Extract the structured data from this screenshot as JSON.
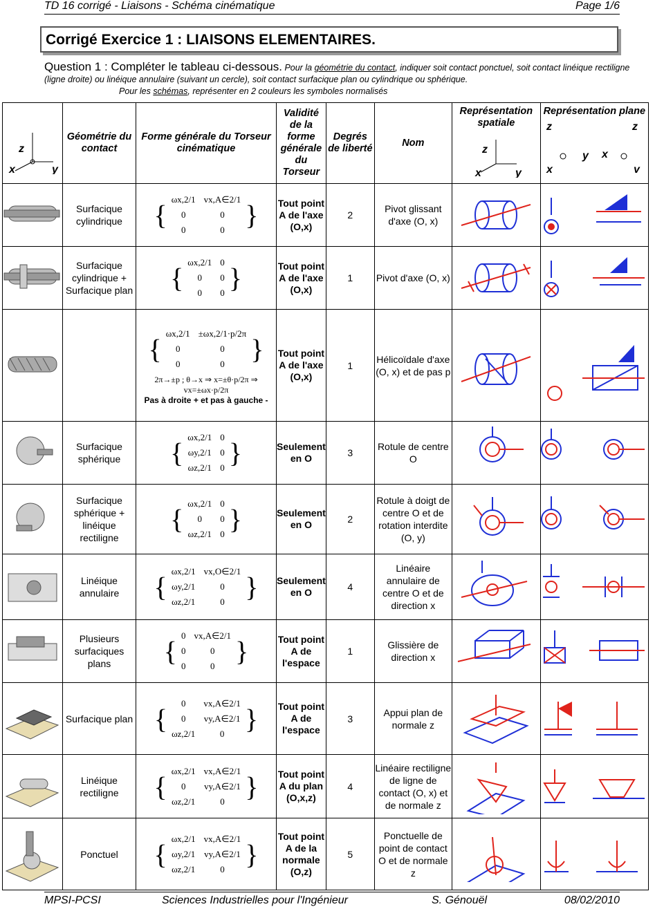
{
  "header": {
    "left": "TD 16 corrigé - Liaisons - Schéma cinématique",
    "right": "Page 1/6"
  },
  "title": "Corrigé Exercice 1 : LIAISONS ELEMENTAIRES.",
  "question": {
    "label": "Question 1 : Compléter le tableau ci-dessous.",
    "t1": " Pour la ",
    "u1": "géométrie du contact",
    "t2": ", indiquer soit contact ponctuel, soit contact linéique rectiligne (ligne droite) ou linéique annulaire (suivant un cercle), soit contact surfacique plan ou cylindrique ou sphérique.",
    "t3": "Pour les ",
    "u2": "schémas",
    "t4": ", représenter en 2 couleurs les symboles normalisés"
  },
  "columns": {
    "geom": "Géométrie du contact",
    "forme": "Forme générale du Torseur cinématique",
    "validite": "Validité de la forme générale du Torseur",
    "ddl": "Degrés de liberté",
    "nom": "Nom",
    "spatiale": "Représentation spatiale",
    "plane": "Représentation plane"
  },
  "rows": [
    {
      "geom": "Surfacique cylindrique",
      "torseur": [
        [
          "ωx,2/1",
          "vx,A∈2/1"
        ],
        [
          "0",
          "0"
        ],
        [
          "0",
          "0"
        ]
      ],
      "validite": "Tout point A de l'axe (O,x)",
      "ddl": "2",
      "nom": "Pivot glissant d'axe (O, x)"
    },
    {
      "geom": "Surfacique cylindrique + Surfacique plan",
      "torseur": [
        [
          "ωx,2/1",
          "0"
        ],
        [
          "0",
          "0"
        ],
        [
          "0",
          "0"
        ]
      ],
      "validite": "Tout point A de l'axe (O,x)",
      "ddl": "1",
      "nom": "Pivot d'axe (O, x)"
    },
    {
      "geom": "",
      "torseur": [
        [
          "ωx,2/1",
          "±ωx,2/1·p/2π"
        ],
        [
          "0",
          "0"
        ],
        [
          "0",
          "0"
        ]
      ],
      "extra": "2π→±p ; θ→x ⇒ x=±θ·p/2π ⇒ vx=±ωx·p/2π",
      "extra2": "Pas à droite + et pas à gauche -",
      "validite": "Tout point A de l'axe (O,x)",
      "ddl": "1",
      "nom": "Hélicoïdale d'axe (O, x) et de pas p"
    },
    {
      "geom": "Surfacique sphérique",
      "torseur": [
        [
          "ωx,2/1",
          "0"
        ],
        [
          "ωy,2/1",
          "0"
        ],
        [
          "ωz,2/1",
          "0"
        ]
      ],
      "validite": "Seulement en O",
      "ddl": "3",
      "nom": "Rotule de centre O"
    },
    {
      "geom": "Surfacique sphérique + linéique rectiligne",
      "torseur": [
        [
          "ωx,2/1",
          "0"
        ],
        [
          "0",
          "0"
        ],
        [
          "ωz,2/1",
          "0"
        ]
      ],
      "validite": "Seulement en O",
      "ddl": "2",
      "nom": "Rotule à doigt de centre O et de rotation interdite (O, y)"
    },
    {
      "geom": "Linéique annulaire",
      "torseur": [
        [
          "ωx,2/1",
          "vx,O∈2/1"
        ],
        [
          "ωy,2/1",
          "0"
        ],
        [
          "ωz,2/1",
          "0"
        ]
      ],
      "validite": "Seulement en O",
      "ddl": "4",
      "nom": "Linéaire annulaire de centre O et de direction x"
    },
    {
      "geom": "Plusieurs surfaciques plans",
      "torseur": [
        [
          "0",
          "vx,A∈2/1"
        ],
        [
          "0",
          "0"
        ],
        [
          "0",
          "0"
        ]
      ],
      "validite": "Tout point A de l'espace",
      "ddl": "1",
      "nom": "Glissière de direction x"
    },
    {
      "geom": "Surfacique plan",
      "torseur": [
        [
          "0",
          "vx,A∈2/1"
        ],
        [
          "0",
          "vy,A∈2/1"
        ],
        [
          "ωz,2/1",
          "0"
        ]
      ],
      "validite": "Tout point A de l'espace",
      "ddl": "3",
      "nom": "Appui plan de normale z"
    },
    {
      "geom": "Linéique rectiligne",
      "torseur": [
        [
          "ωx,2/1",
          "vx,A∈2/1"
        ],
        [
          "0",
          "vy,A∈2/1"
        ],
        [
          "ωz,2/1",
          "0"
        ]
      ],
      "validite": "Tout point A du plan (O,x,z)",
      "ddl": "4",
      "nom": "Linéaire rectiligne de ligne de contact (O, x) et de normale z"
    },
    {
      "geom": "Ponctuel",
      "torseur": [
        [
          "ωx,2/1",
          "vx,A∈2/1"
        ],
        [
          "ωy,2/1",
          "vy,A∈2/1"
        ],
        [
          "ωz,2/1",
          "0"
        ]
      ],
      "validite": "Tout point A de la normale (O,z)",
      "ddl": "5",
      "nom": "Ponctuelle de point de contact O et de normale z"
    }
  ],
  "footer": {
    "a": "MPSI-PCSI",
    "b": "Sciences Industrielles pour l'Ingénieur",
    "c": "S. Génouël",
    "d": "08/02/2010"
  },
  "colors": {
    "red": "#e0231b",
    "blue": "#1e2fd6"
  }
}
